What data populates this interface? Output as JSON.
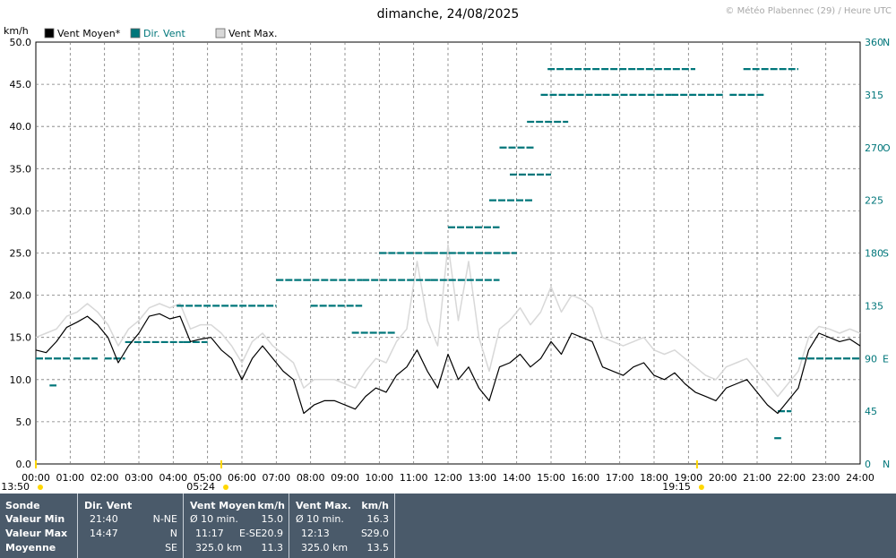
{
  "chart_data": {
    "type": "line",
    "title": "dimanche, 24/08/2025",
    "credit": "© Météo Plabennec (29) / Heure UTC",
    "ylabel_left": "km/h",
    "ylim": [
      0,
      50
    ],
    "y_ticks": [
      "0.0",
      "5.0",
      "10.0",
      "15.0",
      "20.0",
      "25.0",
      "30.0",
      "35.0",
      "40.0",
      "45.0",
      "50.0"
    ],
    "y2_ticks": [
      {
        "value": 0,
        "label": "0",
        "card": "N"
      },
      {
        "value": 45,
        "label": "45",
        "card": ""
      },
      {
        "value": 90,
        "label": "90",
        "card": "E"
      },
      {
        "value": 135,
        "label": "135",
        "card": ""
      },
      {
        "value": 180,
        "label": "180",
        "card": "S"
      },
      {
        "value": 225,
        "label": "225",
        "card": ""
      },
      {
        "value": 270,
        "label": "270",
        "card": "O"
      },
      {
        "value": 315,
        "label": "315",
        "card": ""
      },
      {
        "value": 360,
        "label": "360",
        "card": "N"
      }
    ],
    "x_ticks": [
      "00:00",
      "01:00",
      "02:00",
      "03:00",
      "04:00",
      "05:00",
      "06:00",
      "07:00",
      "08:00",
      "09:00",
      "10:00",
      "11:00",
      "12:00",
      "13:00",
      "14:00",
      "15:00",
      "16:00",
      "17:00",
      "18:00",
      "19:00",
      "20:00",
      "21:00",
      "22:00",
      "23:00",
      "24:00"
    ],
    "legend": [
      {
        "name": "Vent Moyen*",
        "color": "#000000"
      },
      {
        "name": "Dir. Vent",
        "color": "#00767a"
      },
      {
        "name": "Vent Max.",
        "color": "#d8d8d8"
      }
    ],
    "sun_markers": [
      {
        "label": "13:50",
        "hour": 0
      },
      {
        "label": "05:24",
        "hour": 5.4
      },
      {
        "label": "19:15",
        "hour": 19.25
      }
    ],
    "series": [
      {
        "name": "Vent Moyen*",
        "color": "#000000",
        "x": [
          0,
          0.3,
          0.6,
          0.9,
          1.2,
          1.5,
          1.8,
          2.1,
          2.4,
          2.7,
          3.0,
          3.3,
          3.6,
          3.9,
          4.2,
          4.5,
          4.8,
          5.1,
          5.4,
          5.7,
          6.0,
          6.3,
          6.6,
          6.9,
          7.2,
          7.5,
          7.8,
          8.1,
          8.4,
          8.7,
          9.0,
          9.3,
          9.6,
          9.9,
          10.2,
          10.5,
          10.8,
          11.1,
          11.4,
          11.7,
          12.0,
          12.3,
          12.6,
          12.9,
          13.2,
          13.5,
          13.8,
          14.1,
          14.4,
          14.7,
          15.0,
          15.3,
          15.6,
          15.9,
          16.2,
          16.5,
          16.8,
          17.1,
          17.4,
          17.7,
          18.0,
          18.3,
          18.6,
          18.9,
          19.2,
          19.5,
          19.8,
          20.1,
          20.4,
          20.7,
          21.0,
          21.3,
          21.6,
          21.9,
          22.2,
          22.5,
          22.8,
          23.1,
          23.4,
          23.7,
          24.0
        ],
        "values": [
          13.5,
          13.2,
          14.5,
          16.2,
          16.8,
          17.5,
          16.5,
          15.0,
          12.0,
          14.0,
          15.5,
          17.5,
          17.8,
          17.2,
          17.5,
          14.5,
          14.8,
          15.0,
          13.5,
          12.5,
          10.0,
          12.5,
          14.0,
          12.5,
          11.0,
          10.0,
          6.0,
          7.0,
          7.5,
          7.5,
          7.0,
          6.5,
          8.0,
          9.0,
          8.5,
          10.5,
          11.5,
          13.5,
          11.0,
          9.0,
          13.0,
          10.0,
          11.5,
          9.0,
          7.5,
          11.5,
          12.0,
          13.0,
          11.5,
          12.5,
          14.5,
          13.0,
          15.5,
          15.0,
          14.5,
          11.5,
          11.0,
          10.5,
          11.5,
          12.0,
          10.5,
          10.0,
          10.8,
          9.5,
          8.5,
          8.0,
          7.5,
          9.0,
          9.5,
          10.0,
          8.5,
          7.0,
          6.0,
          7.5,
          9.0,
          13.5,
          15.5,
          15.0,
          14.5,
          14.8,
          14.0
        ]
      },
      {
        "name": "Vent Max.",
        "color": "#d8d8d8",
        "x": [
          0,
          0.3,
          0.6,
          0.9,
          1.2,
          1.5,
          1.8,
          2.1,
          2.4,
          2.7,
          3.0,
          3.3,
          3.6,
          3.9,
          4.2,
          4.5,
          4.8,
          5.1,
          5.4,
          5.7,
          6.0,
          6.3,
          6.6,
          6.9,
          7.2,
          7.5,
          7.8,
          8.1,
          8.4,
          8.7,
          9.0,
          9.3,
          9.6,
          9.9,
          10.2,
          10.5,
          10.8,
          11.1,
          11.4,
          11.7,
          12.0,
          12.3,
          12.6,
          12.9,
          13.2,
          13.5,
          13.8,
          14.1,
          14.4,
          14.7,
          15.0,
          15.3,
          15.6,
          15.9,
          16.2,
          16.5,
          16.8,
          17.1,
          17.4,
          17.7,
          18.0,
          18.3,
          18.6,
          18.9,
          19.2,
          19.5,
          19.8,
          20.1,
          20.4,
          20.7,
          21.0,
          21.3,
          21.6,
          21.9,
          22.2,
          22.5,
          22.8,
          23.1,
          23.4,
          23.7,
          24.0
        ],
        "values": [
          15.0,
          15.5,
          16.0,
          17.5,
          18.0,
          19.0,
          18.0,
          16.5,
          14.0,
          16.0,
          17.0,
          18.5,
          19.0,
          18.5,
          19.0,
          16.0,
          16.5,
          16.5,
          15.5,
          14.0,
          12.0,
          14.5,
          15.5,
          14.0,
          13.0,
          12.0,
          9.0,
          10.0,
          10.0,
          10.0,
          9.5,
          9.0,
          11.0,
          12.5,
          12.0,
          14.5,
          16.0,
          24.0,
          17.0,
          14.0,
          26.0,
          17.0,
          24.0,
          15.0,
          11.0,
          16.0,
          17.0,
          18.5,
          16.5,
          18.0,
          21.0,
          18.0,
          20.0,
          19.5,
          18.5,
          15.0,
          14.5,
          14.0,
          14.5,
          15.0,
          13.5,
          13.0,
          13.5,
          12.5,
          11.5,
          10.5,
          10.0,
          11.5,
          12.0,
          12.5,
          11.0,
          9.5,
          8.0,
          9.5,
          11.0,
          15.0,
          16.3,
          16.0,
          15.5,
          16.0,
          15.5
        ]
      },
      {
        "name": "Dir. Vent",
        "color": "#00767a",
        "axis": "right",
        "segments": [
          [
            0,
            1,
            90
          ],
          [
            1.1,
            1.8,
            90
          ],
          [
            2.0,
            2.6,
            90
          ],
          [
            2.6,
            4.3,
            104
          ],
          [
            4.3,
            5.0,
            104
          ],
          [
            4.1,
            7.0,
            135
          ],
          [
            7.0,
            9.5,
            157
          ],
          [
            8.0,
            9.5,
            135
          ],
          [
            9.2,
            10.5,
            112
          ],
          [
            9.5,
            11.5,
            157
          ],
          [
            11.5,
            13.5,
            157
          ],
          [
            10.0,
            11.5,
            180
          ],
          [
            11.5,
            14.0,
            180
          ],
          [
            12.0,
            13.5,
            202
          ],
          [
            13.2,
            14.5,
            225
          ],
          [
            13.8,
            15.0,
            247
          ],
          [
            13.5,
            14.5,
            270
          ],
          [
            14.3,
            15.5,
            292
          ],
          [
            14.7,
            16.5,
            315
          ],
          [
            16.5,
            18.5,
            315
          ],
          [
            18.5,
            20.0,
            315
          ],
          [
            20.2,
            21.2,
            315
          ],
          [
            14.9,
            17.5,
            337
          ],
          [
            17.5,
            19.2,
            337
          ],
          [
            20.6,
            22.2,
            337
          ],
          [
            22.2,
            24.0,
            90
          ],
          [
            21.6,
            22.0,
            45
          ],
          [
            0.4,
            0.6,
            67
          ],
          [
            21.5,
            21.7,
            22
          ]
        ],
        "values": [
          90,
          135,
          157,
          180,
          225,
          270,
          315,
          337
        ]
      }
    ]
  },
  "stats": {
    "headers": {
      "sonde": "Sonde",
      "dir": "Dir. Vent",
      "moy": "Vent Moyen",
      "moy_unit": "km/h",
      "max": "Vent Max.",
      "max_unit": "km/h"
    },
    "rows": [
      {
        "label": "Valeur Min",
        "dir_time": "21:40",
        "dir_val": "N-NE",
        "moy_a": "Ø 10 min.",
        "moy_b": "",
        "moy_c": "15.0",
        "max_a": "Ø 10 min.",
        "max_b": "",
        "max_c": "16.3"
      },
      {
        "label": "Valeur Max",
        "dir_time": "14:47",
        "dir_val": "N",
        "moy_a": "11:17",
        "moy_b": "E-SE",
        "moy_c": "20.9",
        "max_a": "12:13",
        "max_b": "S",
        "max_c": "29.0"
      },
      {
        "label": "Moyenne",
        "dir_time": "",
        "dir_val": "SE",
        "moy_a": "325.0 km",
        "moy_b": "",
        "moy_c": "11.3",
        "max_a": "325.0 km",
        "max_b": "",
        "max_c": "13.5"
      }
    ]
  }
}
